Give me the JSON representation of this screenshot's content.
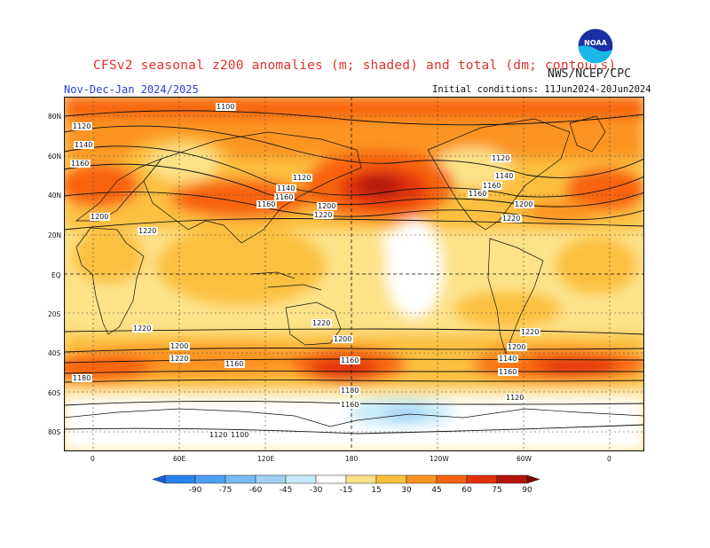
{
  "header": {
    "title": "CFSv2 seasonal z200 anomalies (m; shaded) and total (dm; contours)",
    "organization": "NWS/NCEP/CPC",
    "period": "Nov-Dec-Jan 2024/2025",
    "initial_conditions": "Initial conditions: 11Jun2024-20Jun2024",
    "logo_text": "NOAA"
  },
  "map": {
    "projection": "cylindrical equidistant, centered on 180",
    "lat_labels": [
      "80N",
      "60N",
      "40N",
      "20N",
      "EQ",
      "20S",
      "40S",
      "60S",
      "80S"
    ],
    "lon_labels": [
      "0",
      "60E",
      "120E",
      "180",
      "120W",
      "60W",
      "0"
    ],
    "contour_labels": [
      "1100",
      "1120",
      "1140",
      "1160",
      "1120",
      "1140",
      "1160",
      "1160",
      "1200",
      "1220",
      "1120",
      "1140",
      "1160",
      "1160",
      "1200",
      "1220",
      "1200",
      "1220",
      "1220",
      "1220",
      "1200",
      "1220",
      "1200",
      "1160",
      "1140",
      "1160",
      "1160",
      "1200",
      "1220",
      "1180",
      "1180",
      "1160",
      "1120",
      "1120",
      "1100"
    ]
  },
  "legend": {
    "levels": [
      "-90",
      "-75",
      "-60",
      "-45",
      "-30",
      "-15",
      "15",
      "30",
      "45",
      "60",
      "75",
      "90"
    ],
    "colors": [
      "#1460e0",
      "#2a82f0",
      "#4ea0f5",
      "#78baf5",
      "#a0d2f5",
      "#c8ecfa",
      "#ffffff",
      "#fde28a",
      "#fcc040",
      "#fb9420",
      "#f86410",
      "#e2300c",
      "#b41508",
      "#7a0a05"
    ]
  }
}
